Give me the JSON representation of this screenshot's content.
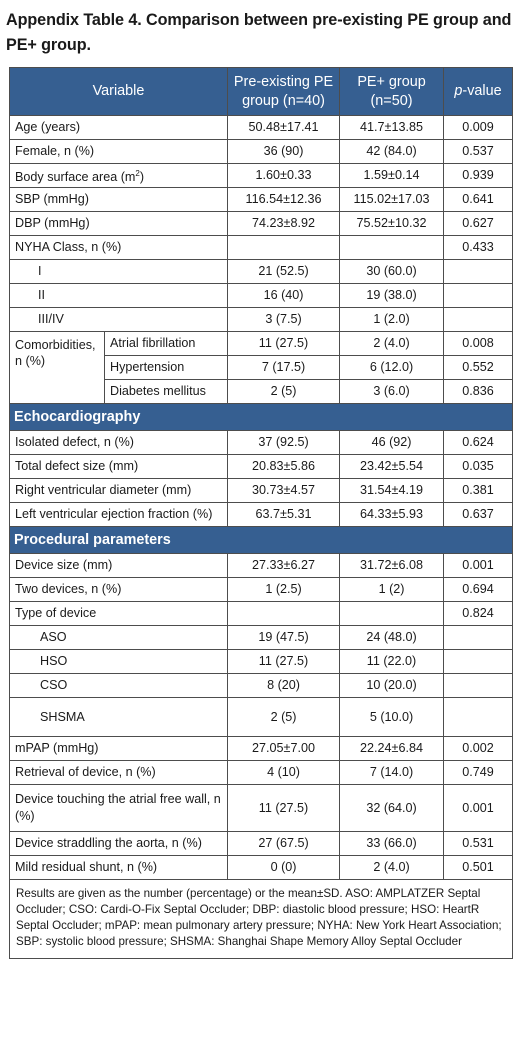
{
  "title": "Appendix Table 4. Comparison between pre-existing PE group and PE+ group.",
  "header": {
    "variable": "Variable",
    "col1_line1": "Pre-existing PE",
    "col1_line2": "group (n=40)",
    "col2_line1": "PE+ group",
    "col2_line2": "(n=50)",
    "col3_p": "p",
    "col3_rest": "-value"
  },
  "rows_top": [
    {
      "label": "Age (years)",
      "a": "50.48±17.41",
      "b": "41.7±13.85",
      "p": "0.009"
    },
    {
      "label": "Female, n (%)",
      "a": "36 (90)",
      "b": "42 (84.0)",
      "p": "0.537"
    },
    {
      "label": "Body surface area (m",
      "sup": "2",
      "label_end": ")",
      "a": "1.60±0.33",
      "b": "1.59±0.14",
      "p": "0.939"
    },
    {
      "label": "SBP (mmHg)",
      "a": "116.54±12.36",
      "b": "115.02±17.03",
      "p": "0.641"
    },
    {
      "label": "DBP (mmHg)",
      "a": "74.23±8.92",
      "b": "75.52±10.32",
      "p": "0.627"
    },
    {
      "label": "NYHA Class, n (%)",
      "a": "",
      "b": "",
      "p": "0.433"
    }
  ],
  "nyha": [
    {
      "label": "I",
      "a": "21 (52.5)",
      "b": "30 (60.0)",
      "p": ""
    },
    {
      "label": "II",
      "a": "16 (40)",
      "b": "19 (38.0)",
      "p": ""
    },
    {
      "label": "III/IV",
      "a": "3 (7.5)",
      "b": "1 (2.0)",
      "p": ""
    }
  ],
  "comorbidities": {
    "label": "Comorbidities, n (%)",
    "items": [
      {
        "label": "Atrial fibrillation",
        "a": "11 (27.5)",
        "b": "2 (4.0)",
        "p": "0.008"
      },
      {
        "label": "Hypertension",
        "a": "7 (17.5)",
        "b": "6 (12.0)",
        "p": "0.552"
      },
      {
        "label": "Diabetes mellitus",
        "a": "2 (5)",
        "b": "3 (6.0)",
        "p": "0.836"
      }
    ]
  },
  "echo": {
    "heading": "Echocardiography",
    "rows": [
      {
        "label": "Isolated defect, n (%)",
        "a": "37 (92.5)",
        "b": "46 (92)",
        "p": "0.624"
      },
      {
        "label": "Total defect size (mm)",
        "a": "20.83±5.86",
        "b": "23.42±5.54",
        "p": "0.035"
      },
      {
        "label": "Right ventricular diameter (mm)",
        "a": "30.73±4.57",
        "b": "31.54±4.19",
        "p": "0.381"
      },
      {
        "label": "Left ventricular ejection fraction (%)",
        "a": "63.7±5.31",
        "b": "64.33±5.93",
        "p": "0.637"
      }
    ]
  },
  "proc": {
    "heading": "Procedural parameters",
    "rows": [
      {
        "label": "Device size (mm)",
        "a": "27.33±6.27",
        "b": "31.72±6.08",
        "p": "0.001"
      },
      {
        "label": "Two devices, n (%)",
        "a": "1 (2.5)",
        "b": "1 (2)",
        "p": "0.694"
      },
      {
        "label": "Type of device",
        "a": "",
        "b": "",
        "p": "0.824"
      }
    ],
    "device_types": [
      {
        "label": "ASO",
        "a": "19 (47.5)",
        "b": "24 (48.0)",
        "p": ""
      },
      {
        "label": "HSO",
        "a": "11 (27.5)",
        "b": "11 (22.0)",
        "p": ""
      },
      {
        "label": "CSO",
        "a": "8 (20)",
        "b": "10 (20.0)",
        "p": ""
      },
      {
        "label": "SHSMA",
        "a": "2 (5)",
        "b": "5 (10.0)",
        "p": ""
      }
    ],
    "rows2": [
      {
        "label": "mPAP (mmHg)",
        "a": "27.05±7.00",
        "b": "22.24±6.84",
        "p": "0.002"
      },
      {
        "label": "Retrieval of device, n (%)",
        "a": "4 (10)",
        "b": "7 (14.0)",
        "p": "0.749"
      },
      {
        "label": "Device touching the atrial free wall, n (%)",
        "a": "11 (27.5)",
        "b": "32 (64.0)",
        "p": "0.001"
      },
      {
        "label": "Device straddling the aorta, n (%)",
        "a": "27 (67.5)",
        "b": "33 (66.0)",
        "p": "0.531"
      },
      {
        "label": "Mild residual shunt, n (%)",
        "a": "0 (0)",
        "b": "2 (4.0)",
        "p": "0.501"
      }
    ]
  },
  "footnote": "Results are given as the number (percentage) or the mean±SD. ASO: AMPLATZER Septal Occluder; CSO: Cardi-O-Fix Septal Occluder; DBP: diastolic blood pressure; HSO: HeartR Septal Occluder; mPAP: mean pulmonary artery pressure; NYHA: New York Heart Association; SBP: systolic blood pressure; SHSMA: Shanghai Shape Memory Alloy Septal Occluder",
  "colors": {
    "header_bg": "#365f91",
    "header_text": "#ffffff",
    "border": "#4d4d4d"
  }
}
